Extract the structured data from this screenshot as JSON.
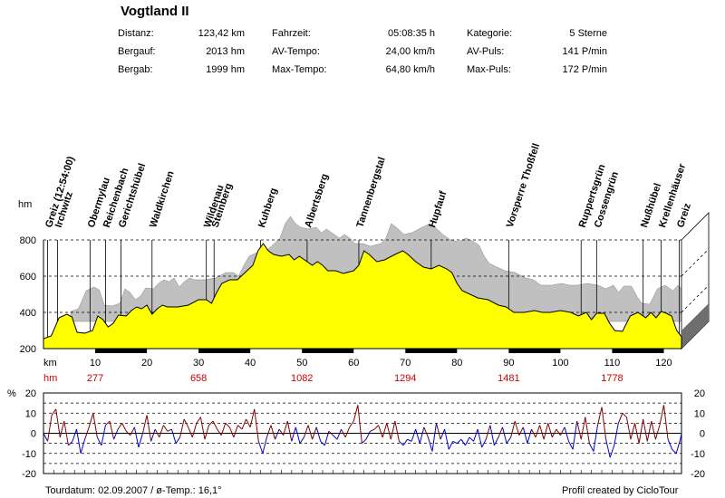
{
  "title": "Vogtland II",
  "stats": [
    {
      "label": "Distanz:",
      "value": "123,42 km"
    },
    {
      "label": "Bergauf:",
      "value": "2013 hm"
    },
    {
      "label": "Bergab:",
      "value": "1999 hm"
    },
    {
      "label": "Fahrzeit:",
      "value": "05:08:35 h"
    },
    {
      "label": "AV-Tempo:",
      "value": "24,00 km/h"
    },
    {
      "label": "Max-Tempo:",
      "value": "64,80 km/h"
    },
    {
      "label": "Kategorie:",
      "value": "5 Sterne"
    },
    {
      "label": "AV-Puls:",
      "value": "141 P/min"
    },
    {
      "label": "Max-Puls:",
      "value": "172 P/min"
    }
  ],
  "footer": {
    "left": "Tourdatum: 02.09.2007  /  ø-Temp.: 16,1°",
    "right": "Profil created by CicloTour"
  },
  "chart_data": [
    {
      "type": "area",
      "ylabel": "hm",
      "xlabel": "km",
      "ylim": [
        200,
        800
      ],
      "xlim": [
        0,
        123.42
      ],
      "yticks": [
        200,
        400,
        600,
        800
      ],
      "xticks": [
        10,
        20,
        30,
        40,
        50,
        60,
        70,
        80,
        90,
        100,
        110,
        120
      ],
      "fill_color": "#ffff00",
      "shadow_color": "#c0c0c0",
      "profile": [
        [
          0,
          255
        ],
        [
          1.5,
          270
        ],
        [
          3,
          370
        ],
        [
          4.5,
          390
        ],
        [
          5.5,
          375
        ],
        [
          6.5,
          290
        ],
        [
          8,
          285
        ],
        [
          9.5,
          300
        ],
        [
          10.5,
          380
        ],
        [
          11.5,
          360
        ],
        [
          12.5,
          320
        ],
        [
          13.5,
          340
        ],
        [
          14.5,
          385
        ],
        [
          16,
          380
        ],
        [
          17,
          410
        ],
        [
          18,
          430
        ],
        [
          19,
          420
        ],
        [
          20,
          440
        ],
        [
          21,
          390
        ],
        [
          22,
          420
        ],
        [
          23,
          440
        ],
        [
          24,
          430
        ],
        [
          26,
          430
        ],
        [
          28,
          440
        ],
        [
          30,
          470
        ],
        [
          31.5,
          470
        ],
        [
          32.5,
          450
        ],
        [
          33.5,
          510
        ],
        [
          34.5,
          560
        ],
        [
          36,
          580
        ],
        [
          37.5,
          580
        ],
        [
          39,
          620
        ],
        [
          40.5,
          660
        ],
        [
          41.5,
          740
        ],
        [
          42.5,
          780
        ],
        [
          43.5,
          740
        ],
        [
          44.5,
          720
        ],
        [
          46,
          710
        ],
        [
          47.5,
          720
        ],
        [
          48.5,
          690
        ],
        [
          49.5,
          710
        ],
        [
          51,
          680
        ],
        [
          52,
          660
        ],
        [
          53,
          680
        ],
        [
          54,
          660
        ],
        [
          55,
          630
        ],
        [
          56.5,
          630
        ],
        [
          58,
          615
        ],
        [
          60,
          630
        ],
        [
          61,
          660
        ],
        [
          62,
          740
        ],
        [
          63,
          720
        ],
        [
          64.5,
          680
        ],
        [
          66,
          690
        ],
        [
          68,
          720
        ],
        [
          69.5,
          740
        ],
        [
          70.5,
          720
        ],
        [
          72,
          680
        ],
        [
          73.5,
          650
        ],
        [
          75,
          640
        ],
        [
          76.5,
          660
        ],
        [
          78,
          640
        ],
        [
          79,
          620
        ],
        [
          80,
          560
        ],
        [
          81,
          520
        ],
        [
          82.5,
          500
        ],
        [
          84,
          480
        ],
        [
          86,
          470
        ],
        [
          88,
          440
        ],
        [
          89.5,
          430
        ],
        [
          91,
          400
        ],
        [
          93,
          400
        ],
        [
          95,
          410
        ],
        [
          96.5,
          400
        ],
        [
          98,
          400
        ],
        [
          100,
          410
        ],
        [
          102,
          400
        ],
        [
          103.5,
          380
        ],
        [
          105,
          400
        ],
        [
          106,
          360
        ],
        [
          107,
          395
        ],
        [
          108.5,
          395
        ],
        [
          109.5,
          340
        ],
        [
          110.5,
          300
        ],
        [
          112,
          295
        ],
        [
          113.5,
          380
        ],
        [
          115,
          400
        ],
        [
          116.5,
          370
        ],
        [
          117.5,
          400
        ],
        [
          118.5,
          370
        ],
        [
          119.5,
          405
        ],
        [
          120.5,
          395
        ],
        [
          121.5,
          380
        ],
        [
          122.5,
          300
        ],
        [
          123.42,
          265
        ]
      ],
      "places": [
        {
          "name": "Greiz (12:54:00)",
          "km": 0.8
        },
        {
          "name": "Irchwitz",
          "km": 2.7
        },
        {
          "name": "Obermylau",
          "km": 9.0
        },
        {
          "name": "Reichenbach",
          "km": 12.0
        },
        {
          "name": "Gerichtshübel",
          "km": 15.0
        },
        {
          "name": "Waldkirchen",
          "km": 21.0
        },
        {
          "name": "Wildenau",
          "km": 31.5
        },
        {
          "name": "Steinberg",
          "km": 33.0
        },
        {
          "name": "Kuhberg",
          "km": 42.0
        },
        {
          "name": "Albertsberg",
          "km": 51.0
        },
        {
          "name": "Tannenbergstal",
          "km": 61.0
        },
        {
          "name": "Hupfauf",
          "km": 75.0
        },
        {
          "name": "Vorsperre Thoßfell",
          "km": 90.0
        },
        {
          "name": "Ruppertsgrün",
          "km": 104.0
        },
        {
          "name": "Cossengrün",
          "km": 107.0
        },
        {
          "name": "Nußhübel",
          "km": 116.0
        },
        {
          "name": "Krellenhäuser",
          "km": 119.5
        },
        {
          "name": "Greiz",
          "km": 123.0
        }
      ],
      "climb_rows": {
        "label": "hm",
        "values": [
          "277",
          "658",
          "1082",
          "1294",
          "1481",
          "1778"
        ],
        "km": [
          10,
          30,
          50,
          70,
          90,
          110
        ]
      }
    },
    {
      "type": "line",
      "ylabel": "%",
      "ylim": [
        -20,
        20
      ],
      "yticks": [
        -20,
        -10,
        0,
        10,
        20
      ],
      "grid": true,
      "positive_color": "#800000",
      "negative_color": "#0000cc",
      "x_range": [
        0,
        123.42
      ],
      "gradient": [
        [
          0,
          0
        ],
        [
          0.8,
          -4
        ],
        [
          1.6,
          9
        ],
        [
          2.4,
          12
        ],
        [
          3.2,
          -2
        ],
        [
          4.0,
          6
        ],
        [
          4.8,
          -6
        ],
        [
          5.6,
          -4
        ],
        [
          6.4,
          2
        ],
        [
          7.2,
          -10
        ],
        [
          8.0,
          -3
        ],
        [
          8.8,
          3
        ],
        [
          9.6,
          10
        ],
        [
          10.4,
          -2
        ],
        [
          11.2,
          -6
        ],
        [
          12.0,
          4
        ],
        [
          12.8,
          6
        ],
        [
          13.6,
          -3
        ],
        [
          14.4,
          2
        ],
        [
          15.2,
          5
        ],
        [
          16.0,
          1
        ],
        [
          16.8,
          -1
        ],
        [
          17.6,
          3
        ],
        [
          18.4,
          -7
        ],
        [
          19.2,
          0
        ],
        [
          20.0,
          9
        ],
        [
          20.8,
          -4
        ],
        [
          21.6,
          2
        ],
        [
          22.4,
          -2
        ],
        [
          23.2,
          4
        ],
        [
          24.0,
          1
        ],
        [
          24.8,
          2
        ],
        [
          25.6,
          -5
        ],
        [
          26.4,
          -2
        ],
        [
          27.2,
          7
        ],
        [
          28.0,
          3
        ],
        [
          28.8,
          -2
        ],
        [
          29.6,
          5
        ],
        [
          30.4,
          8
        ],
        [
          31.2,
          -3
        ],
        [
          32.0,
          4
        ],
        [
          32.8,
          6
        ],
        [
          33.6,
          2
        ],
        [
          34.4,
          -1
        ],
        [
          35.2,
          5
        ],
        [
          36.0,
          3
        ],
        [
          36.8,
          -2
        ],
        [
          37.6,
          4
        ],
        [
          38.4,
          2
        ],
        [
          39.2,
          7
        ],
        [
          40.0,
          3
        ],
        [
          40.8,
          12
        ],
        [
          41.6,
          -4
        ],
        [
          42.4,
          -10
        ],
        [
          43.2,
          -2
        ],
        [
          44.0,
          4
        ],
        [
          44.8,
          -3
        ],
        [
          45.6,
          2
        ],
        [
          46.4,
          -1
        ],
        [
          47.2,
          6
        ],
        [
          48.0,
          -4
        ],
        [
          48.8,
          3
        ],
        [
          49.6,
          -5
        ],
        [
          50.4,
          -2
        ],
        [
          51.2,
          4
        ],
        [
          52.0,
          -3
        ],
        [
          52.8,
          3
        ],
        [
          53.6,
          -4
        ],
        [
          54.4,
          -6
        ],
        [
          55.2,
          1
        ],
        [
          56.0,
          -1
        ],
        [
          56.8,
          -3
        ],
        [
          57.6,
          2
        ],
        [
          58.4,
          -2
        ],
        [
          59.2,
          3
        ],
        [
          60.0,
          6
        ],
        [
          60.8,
          14
        ],
        [
          61.6,
          -5
        ],
        [
          62.4,
          -3
        ],
        [
          63.2,
          1
        ],
        [
          64.0,
          2
        ],
        [
          64.8,
          4
        ],
        [
          65.6,
          -2
        ],
        [
          66.4,
          5
        ],
        [
          67.2,
          -3
        ],
        [
          68.0,
          6
        ],
        [
          68.8,
          -4
        ],
        [
          69.6,
          -6
        ],
        [
          70.4,
          -3
        ],
        [
          71.2,
          -4
        ],
        [
          72.0,
          2
        ],
        [
          72.8,
          -5
        ],
        [
          73.6,
          3
        ],
        [
          74.4,
          -2
        ],
        [
          75.2,
          -9
        ],
        [
          76.0,
          5
        ],
        [
          76.8,
          -3
        ],
        [
          77.6,
          2
        ],
        [
          78.4,
          -8
        ],
        [
          79.2,
          -4
        ],
        [
          80.0,
          -5
        ],
        [
          80.8,
          -3
        ],
        [
          81.6,
          -6
        ],
        [
          82.4,
          -2
        ],
        [
          83.2,
          -4
        ],
        [
          84.0,
          2
        ],
        [
          84.8,
          -7
        ],
        [
          85.6,
          -3
        ],
        [
          86.4,
          4
        ],
        [
          87.2,
          -6
        ],
        [
          88.0,
          -2
        ],
        [
          88.8,
          3
        ],
        [
          89.6,
          -5
        ],
        [
          90.4,
          -2
        ],
        [
          91.2,
          6
        ],
        [
          92.0,
          -1
        ],
        [
          92.8,
          3
        ],
        [
          93.6,
          -5
        ],
        [
          94.4,
          2
        ],
        [
          95.2,
          -2
        ],
        [
          96.0,
          4
        ],
        [
          96.8,
          -3
        ],
        [
          97.6,
          5
        ],
        [
          98.4,
          -2
        ],
        [
          99.2,
          2
        ],
        [
          100.0,
          -1
        ],
        [
          100.8,
          3
        ],
        [
          101.6,
          -4
        ],
        [
          102.4,
          -8
        ],
        [
          103.2,
          6
        ],
        [
          104.0,
          -3
        ],
        [
          104.8,
          8
        ],
        [
          105.6,
          -5
        ],
        [
          106.4,
          -9
        ],
        [
          107.2,
          4
        ],
        [
          108.0,
          13
        ],
        [
          108.8,
          -3
        ],
        [
          109.6,
          -12
        ],
        [
          110.4,
          -6
        ],
        [
          111.2,
          5
        ],
        [
          112.0,
          10
        ],
        [
          112.8,
          8
        ],
        [
          113.6,
          -3
        ],
        [
          114.4,
          5
        ],
        [
          115.2,
          -5
        ],
        [
          116.0,
          7
        ],
        [
          116.8,
          -4
        ],
        [
          117.6,
          6
        ],
        [
          118.4,
          -3
        ],
        [
          119.2,
          4
        ],
        [
          120.0,
          14
        ],
        [
          120.8,
          -3
        ],
        [
          121.6,
          -8
        ],
        [
          122.4,
          -10
        ],
        [
          123.2,
          -3
        ],
        [
          123.42,
          0
        ]
      ]
    }
  ]
}
